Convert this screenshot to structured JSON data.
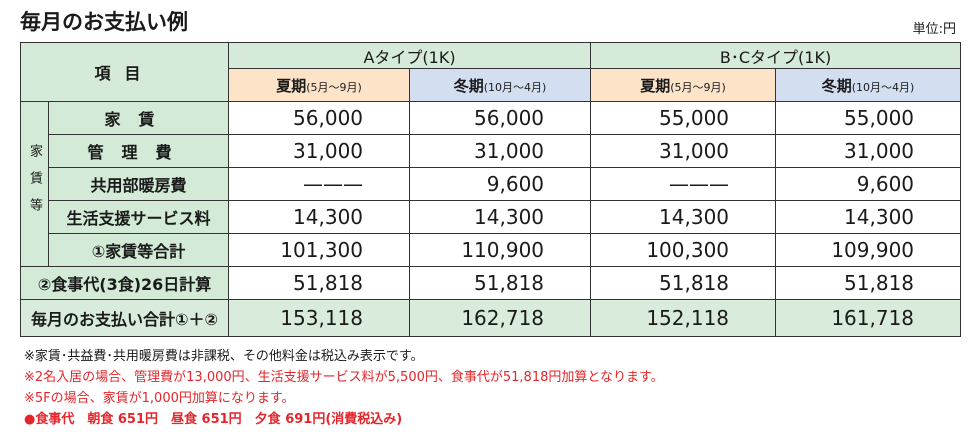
{
  "header": {
    "title": "毎月のお支払い例",
    "unit": "単位:円"
  },
  "table": {
    "item_header": "項目",
    "groups": [
      "Aタイプ(1K)",
      "B･Cタイプ(1K)"
    ],
    "seasons": [
      {
        "label": "夏期",
        "period": "(5月～9月)"
      },
      {
        "label": "冬期",
        "period": "(10月～4月)"
      },
      {
        "label": "夏期",
        "period": "(5月～9月)"
      },
      {
        "label": "冬期",
        "period": "(10月～4月)"
      }
    ],
    "rent_group": "家賃等",
    "rows": [
      [
        "家賃",
        "56,000",
        "56,000",
        "55,000",
        "55,000"
      ],
      [
        "管理費",
        "31,000",
        "31,000",
        "31,000",
        "31,000"
      ],
      [
        "共用部暖房費",
        "———",
        "9,600",
        "———",
        "9,600"
      ],
      [
        "生活支援サービス料",
        "14,300",
        "14,300",
        "14,300",
        "14,300"
      ],
      [
        "①家賃等合計",
        "101,300",
        "110,900",
        "100,300",
        "109,900"
      ],
      [
        "②食事代(3食)26日計算",
        "51,818",
        "51,818",
        "51,818",
        "51,818"
      ],
      [
        "毎月のお支払い合計①＋②",
        "153,118",
        "162,718",
        "152,118",
        "161,718"
      ]
    ]
  },
  "notes": [
    "※家賃･共益費･共用暖房費は非課税、その他料金は税込み表示です。",
    "※2名入居の場合、管理費が13,000円、生活支援サービス料が5,500円、食事代が51,818円加算となります。",
    "※5Fの場合、家賃が1,000円加算になります。",
    "●食事代　朝食 651円　昼食 651円　夕食 691円(消費税込み)"
  ]
}
